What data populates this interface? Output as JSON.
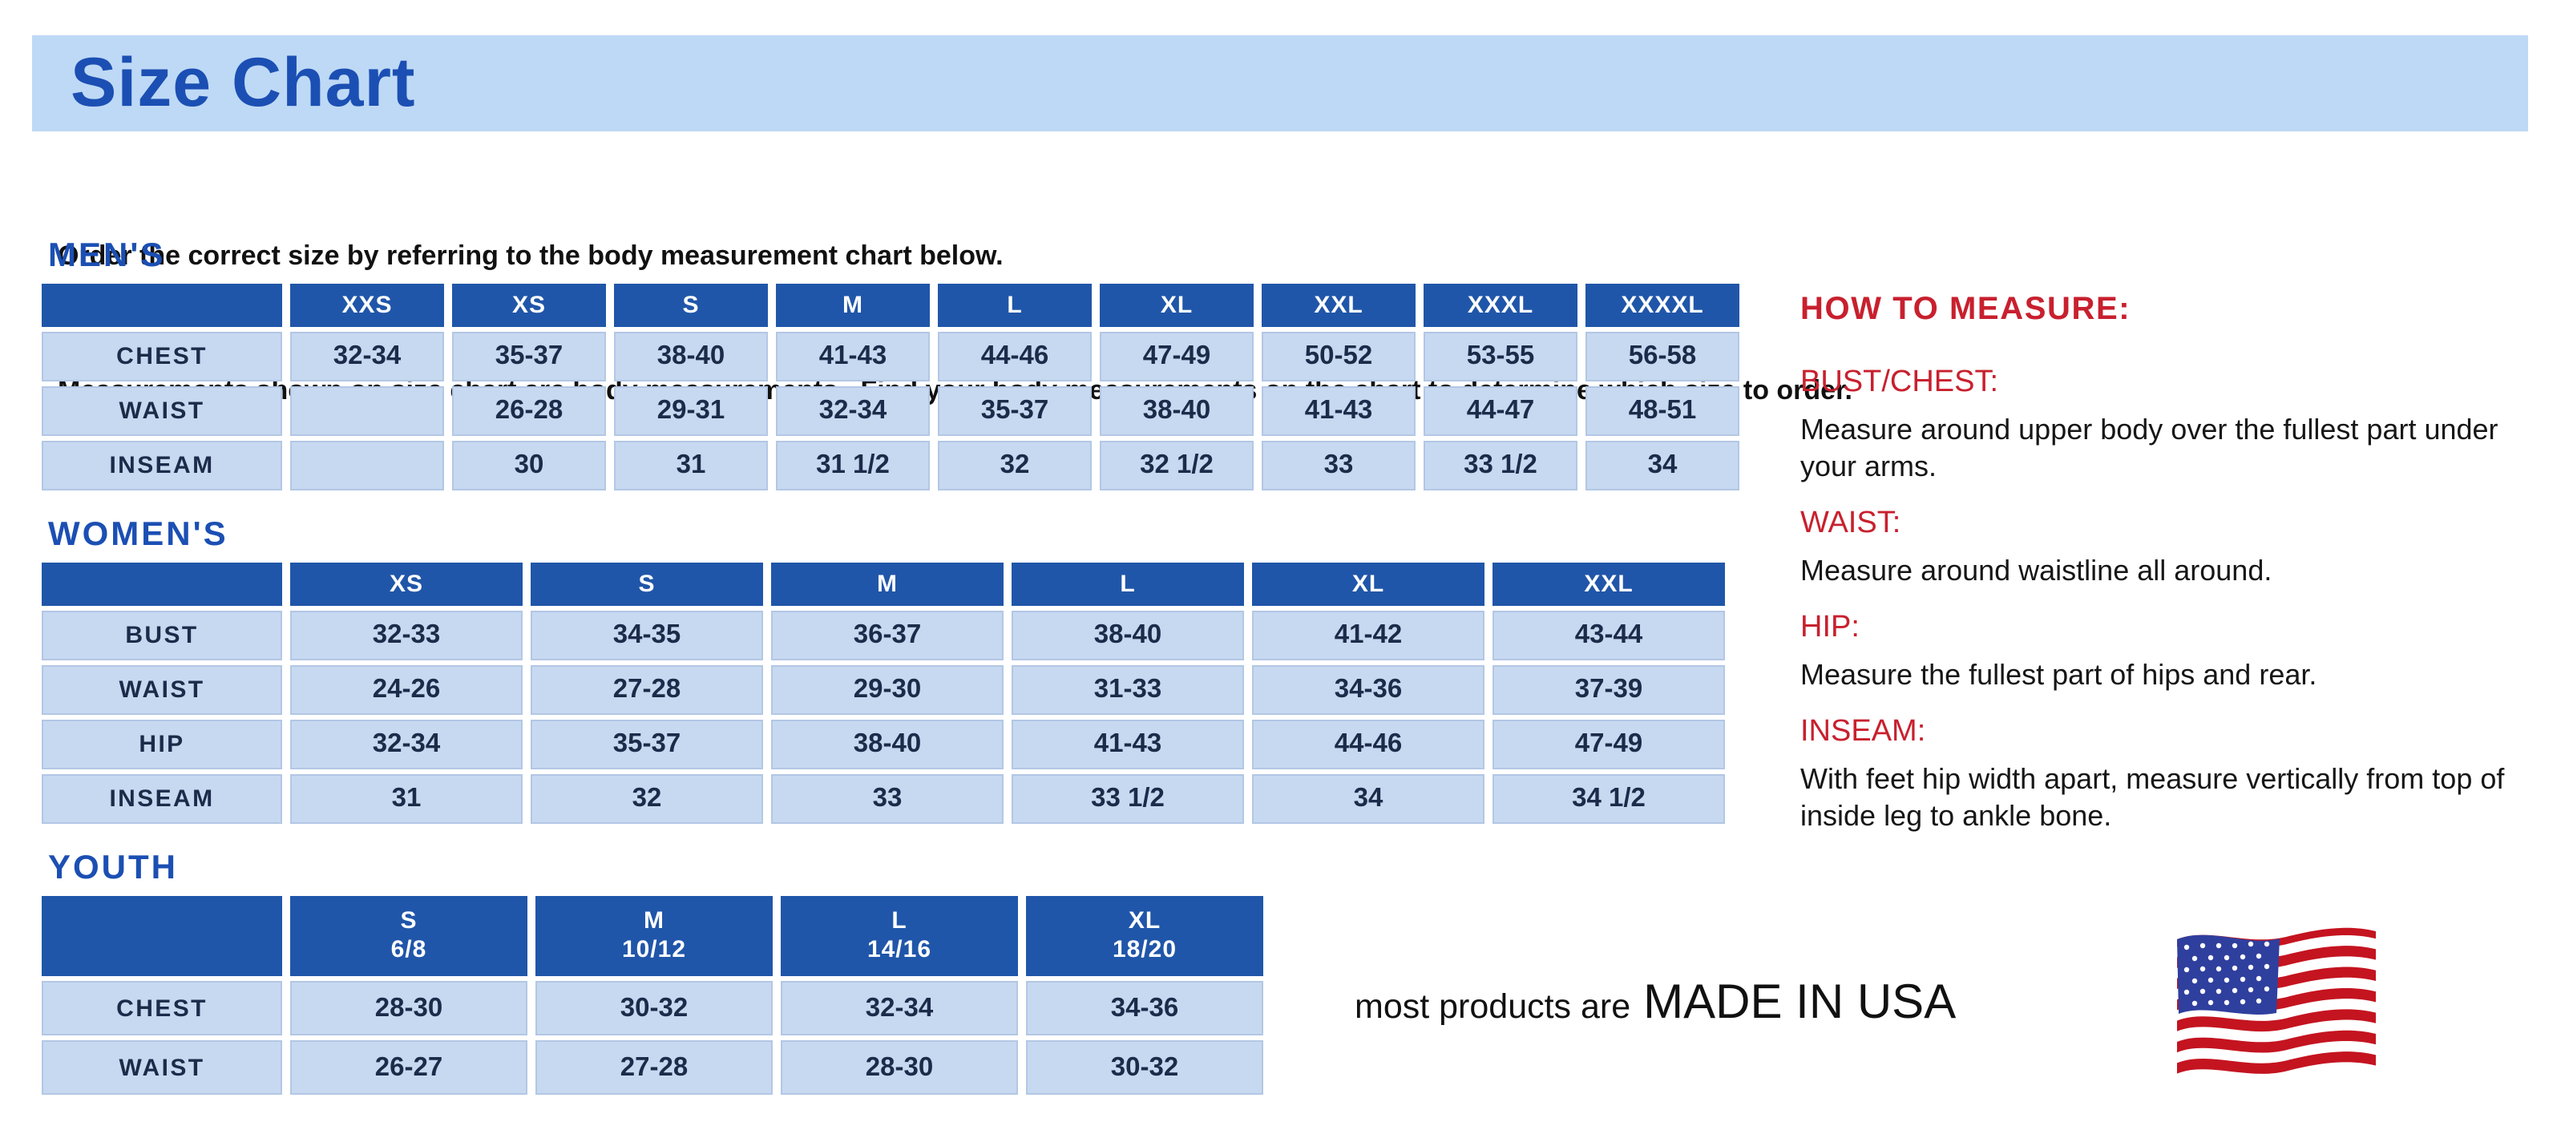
{
  "page": {
    "title": "Size Chart"
  },
  "intro": {
    "line1": "Order the correct size by referring to the body measurement chart below.",
    "line2": "Measurements shown on size chart are body measurements.  Find your body measurements on the chart to determine which size to order."
  },
  "colors": {
    "title_bar_bg": "#BED9F6",
    "heading_blue": "#1B4FB3",
    "table_header_blue": "#2056A9",
    "cell_light_blue": "#C7D9F0",
    "cell_text_navy": "#1C2B4A",
    "measure_red": "#C8202E",
    "flag_red": "#C41420",
    "flag_blue": "#2F3F9E"
  },
  "tables": {
    "mens": {
      "heading": "MEN'S",
      "columns": [
        "XXS",
        "XS",
        "S",
        "M",
        "L",
        "XL",
        "XXL",
        "XXXL",
        "XXXXL"
      ],
      "rows": [
        {
          "label": "CHEST",
          "values": [
            "32-34",
            "35-37",
            "38-40",
            "41-43",
            "44-46",
            "47-49",
            "50-52",
            "53-55",
            "56-58"
          ]
        },
        {
          "label": "WAIST",
          "values": [
            "",
            "26-28",
            "29-31",
            "32-34",
            "35-37",
            "38-40",
            "41-43",
            "44-47",
            "48-51"
          ]
        },
        {
          "label": "INSEAM",
          "values": [
            "",
            "30",
            "31",
            "31 1/2",
            "32",
            "32 1/2",
            "33",
            "33 1/2",
            "34"
          ]
        }
      ]
    },
    "womens": {
      "heading": "WOMEN'S",
      "columns": [
        "XS",
        "S",
        "M",
        "L",
        "XL",
        "XXL"
      ],
      "rows": [
        {
          "label": "BUST",
          "values": [
            "32-33",
            "34-35",
            "36-37",
            "38-40",
            "41-42",
            "43-44"
          ]
        },
        {
          "label": "WAIST",
          "values": [
            "24-26",
            "27-28",
            "29-30",
            "31-33",
            "34-36",
            "37-39"
          ]
        },
        {
          "label": "HIP",
          "values": [
            "32-34",
            "35-37",
            "38-40",
            "41-43",
            "44-46",
            "47-49"
          ]
        },
        {
          "label": "INSEAM",
          "values": [
            "31",
            "32",
            "33",
            "33 1/2",
            "34",
            "34 1/2"
          ]
        }
      ]
    },
    "youth": {
      "heading": "YOUTH",
      "columns": [
        {
          "size": "S",
          "range": "6/8"
        },
        {
          "size": "M",
          "range": "10/12"
        },
        {
          "size": "L",
          "range": "14/16"
        },
        {
          "size": "XL",
          "range": "18/20"
        }
      ],
      "rows": [
        {
          "label": "CHEST",
          "values": [
            "28-30",
            "30-32",
            "32-34",
            "34-36"
          ]
        },
        {
          "label": "WAIST",
          "values": [
            "26-27",
            "27-28",
            "28-30",
            "30-32"
          ]
        }
      ]
    }
  },
  "how_to_measure": {
    "heading": "HOW TO MEASURE:",
    "items": [
      {
        "label": "BUST/CHEST:",
        "text": "Measure around upper body over the fullest part under your arms."
      },
      {
        "label": "WAIST:",
        "text": "Measure around waistline all around."
      },
      {
        "label": "HIP:",
        "text": "Measure the fullest part of hips and rear."
      },
      {
        "label": "INSEAM:",
        "text": "With feet hip width apart, measure vertically from top of inside leg to ankle bone."
      }
    ]
  },
  "footer": {
    "prefix": "most products are",
    "emphasis": "MADE IN USA",
    "flag_icon": "usa-flag-icon"
  }
}
